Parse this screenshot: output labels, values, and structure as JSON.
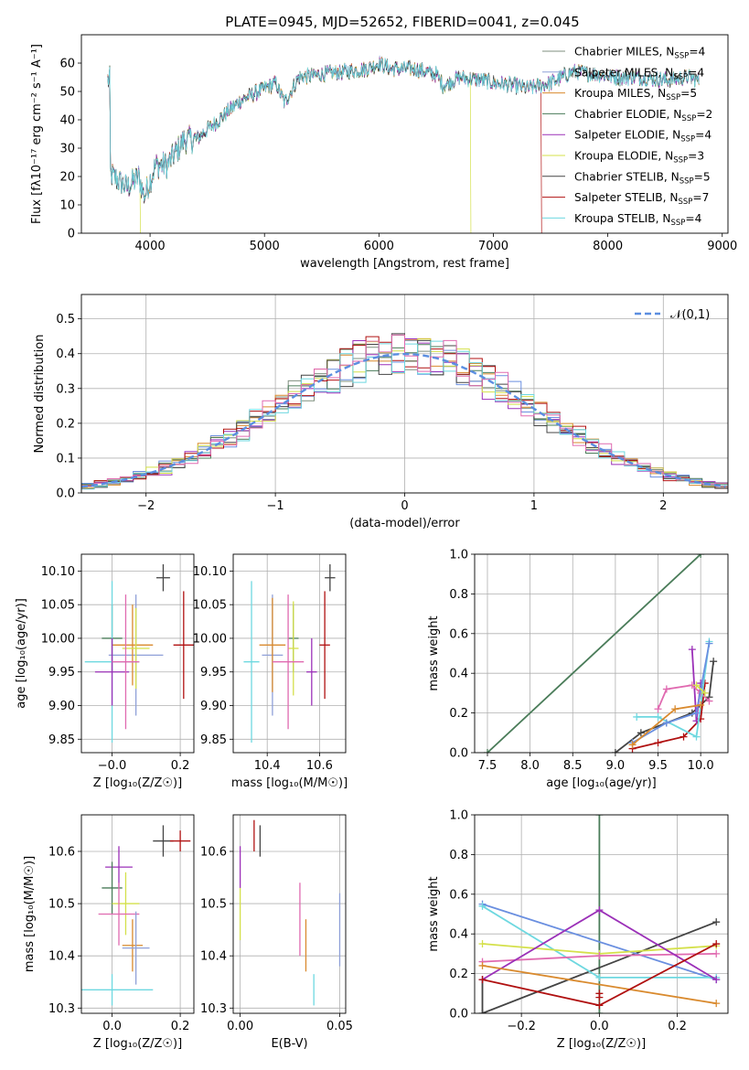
{
  "colors": {
    "Chabrier MILES": "#7f8f7f",
    "Salpeter MILES": "#8fa0d8",
    "Kroupa MILES": "#d98a2e",
    "Chabrier ELODIE": "#4a7c59",
    "Salpeter ELODIE": "#9b30b8",
    "Kroupa ELODIE": "#d4e04a",
    "Chabrier STELIB": "#444444",
    "Salpeter STELIB": "#b01010",
    "Kroupa STELIB": "#6ed8e0",
    "hist_extra_blue": "#6a8fe0",
    "hist_extra_pink": "#e06ab0",
    "gaussian": "#5b8ee0"
  },
  "chart_data": [
    {
      "type": "line",
      "title": "PLATE=0945, MJD=52652, FIBERID=0041, z=0.045",
      "xlabel": "wavelength [Angstrom, rest frame]",
      "ylabel": "Flux [fλ10⁻¹⁷ erg cm⁻² s⁻¹ A⁻¹]",
      "xlim": [
        3400,
        9050
      ],
      "ylim": [
        0,
        70
      ],
      "xticks": [
        4000,
        5000,
        6000,
        7000,
        8000,
        9000
      ],
      "yticks": [
        0,
        10,
        20,
        30,
        40,
        50,
        60
      ],
      "grid": false,
      "legend_position": "top-right",
      "series": [
        {
          "name": "Chabrier MILES, N_SSP=4"
        },
        {
          "name": "Salpeter MILES, N_SSP=4"
        },
        {
          "name": "Kroupa MILES, N_SSP=5"
        },
        {
          "name": "Chabrier ELODIE, N_SSP=2"
        },
        {
          "name": "Salpeter ELODIE, N_SSP=4"
        },
        {
          "name": "Kroupa ELODIE, N_SSP=3"
        },
        {
          "name": "Chabrier STELIB, N_SSP=5"
        },
        {
          "name": "Salpeter STELIB, N_SSP=7"
        },
        {
          "name": "Kroupa STELIB, N_SSP=4"
        }
      ],
      "continuum_points": [
        [
          3650,
          21
        ],
        [
          3800,
          16
        ],
        [
          3900,
          20
        ],
        [
          3950,
          13
        ],
        [
          4050,
          24
        ],
        [
          4150,
          24
        ],
        [
          4300,
          33
        ],
        [
          4400,
          33
        ],
        [
          4600,
          40
        ],
        [
          4800,
          47
        ],
        [
          5000,
          51
        ],
        [
          5100,
          53
        ],
        [
          5175,
          46
        ],
        [
          5300,
          55
        ],
        [
          5500,
          56
        ],
        [
          5700,
          57
        ],
        [
          5900,
          58
        ],
        [
          6000,
          60
        ],
        [
          6100,
          58
        ],
        [
          6300,
          58
        ],
        [
          6500,
          56
        ],
        [
          6563,
          52
        ],
        [
          6700,
          55
        ],
        [
          6900,
          54
        ],
        [
          7000,
          53
        ],
        [
          7200,
          52
        ],
        [
          7300,
          51
        ],
        [
          7500,
          53
        ],
        [
          7700,
          57
        ],
        [
          7900,
          56
        ],
        [
          8100,
          55
        ],
        [
          8300,
          55
        ],
        [
          8500,
          54
        ],
        [
          8700,
          55
        ],
        [
          8800,
          54
        ]
      ],
      "dropouts": [
        {
          "series": "Kroupa ELODIE",
          "x_from": 3920,
          "note": "model ends"
        },
        {
          "series": "Kroupa ELODIE",
          "x_from": 6800,
          "note": "model ends"
        },
        {
          "series": "Salpeter STELIB",
          "x_from": 7420,
          "note": "model ends"
        }
      ]
    },
    {
      "type": "line",
      "xlabel": "(data-model)/error",
      "ylabel": "Normed distribution",
      "xlim": [
        -2.5,
        2.5
      ],
      "ylim": [
        0,
        0.57
      ],
      "xticks": [
        -2,
        -1,
        0,
        1,
        2
      ],
      "yticks": [
        0.0,
        0.1,
        0.2,
        0.3,
        0.4,
        0.5
      ],
      "grid": true,
      "legend_position": "top-right",
      "legend": [
        "𝒩(0,1)"
      ],
      "histogram": "step",
      "bin_width": 0.1
    },
    {
      "type": "scatter",
      "xlabel": "Z [log₁₀(Z/Z☉)]",
      "ylabel": "age  [log₁₀(age/yr)]",
      "xlim": [
        -0.09,
        0.24
      ],
      "ylim": [
        9.83,
        10.125
      ],
      "xticks": [
        -0.0,
        0.2
      ],
      "yticks": [
        9.85,
        9.9,
        9.95,
        10.0,
        10.05,
        10.1
      ],
      "grid": true,
      "points": [
        {
          "series": "Chabrier STELIB",
          "x": 0.15,
          "y": 10.09,
          "xerr": 0.02,
          "yerr": 0.02
        },
        {
          "series": "Salpeter STELIB",
          "x": 0.21,
          "y": 9.99,
          "xerr": 0.03,
          "yerr": 0.08
        },
        {
          "series": "Salpeter MILES",
          "x": 0.07,
          "y": 9.975,
          "xerr": 0.08,
          "yerr": 0.09
        },
        {
          "series": "Kroupa MILES",
          "x": 0.06,
          "y": 9.99,
          "xerr": 0.06,
          "yerr": 0.06
        },
        {
          "series": "Chabrier ELODIE",
          "x": 0.0,
          "y": 10.0,
          "xerr": 0.03,
          "yerr": 0.05
        },
        {
          "series": "Kroupa ELODIE",
          "x": 0.07,
          "y": 9.985,
          "xerr": 0.04,
          "yerr": 0.06
        },
        {
          "series": "Kroupa STELIB",
          "x": -0.0,
          "y": 9.965,
          "xerr": 0.08,
          "yerr": 0.12
        },
        {
          "series": "Salpeter ELODIE",
          "x": 0.0,
          "y": 9.95,
          "xerr": 0.05,
          "yerr": 0.05
        },
        {
          "series": "hist_extra_pink",
          "x": 0.04,
          "y": 9.965,
          "xerr": 0.04,
          "yerr": 0.1
        }
      ]
    },
    {
      "type": "scatter",
      "xlabel": "mass [log₁₀(M/M☉)]",
      "ylabel": "",
      "xlim": [
        10.27,
        10.7
      ],
      "ylim": [
        9.83,
        10.125
      ],
      "xticks": [
        10.4,
        10.6
      ],
      "yticks": [
        9.85,
        9.9,
        9.95,
        10.0,
        10.05,
        10.1
      ],
      "grid": true,
      "points": [
        {
          "series": "Chabrier STELIB",
          "x": 10.64,
          "y": 10.09,
          "xerr": 0.02,
          "yerr": 0.02
        },
        {
          "series": "Salpeter STELIB",
          "x": 10.62,
          "y": 9.99,
          "xerr": 0.02,
          "yerr": 0.08
        },
        {
          "series": "Salpeter MILES",
          "x": 10.42,
          "y": 9.975,
          "xerr": 0.04,
          "yerr": 0.09
        },
        {
          "series": "Kroupa MILES",
          "x": 10.42,
          "y": 9.99,
          "xerr": 0.05,
          "yerr": 0.07
        },
        {
          "series": "Chabrier ELODIE",
          "x": 10.5,
          "y": 10.0,
          "xerr": 0.02,
          "yerr": 0.05
        },
        {
          "series": "Kroupa ELODIE",
          "x": 10.5,
          "y": 9.985,
          "xerr": 0.02,
          "yerr": 0.07
        },
        {
          "series": "Kroupa STELIB",
          "x": 10.34,
          "y": 9.965,
          "xerr": 0.03,
          "yerr": 0.12
        },
        {
          "series": "Salpeter ELODIE",
          "x": 10.57,
          "y": 9.95,
          "xerr": 0.02,
          "yerr": 0.05
        },
        {
          "series": "hist_extra_pink",
          "x": 10.48,
          "y": 9.965,
          "xerr": 0.06,
          "yerr": 0.1
        }
      ]
    },
    {
      "type": "line",
      "xlabel": "age  [log₁₀(age/yr)]",
      "ylabel": "mass weight",
      "xlim": [
        7.35,
        10.32
      ],
      "ylim": [
        0,
        1.0
      ],
      "xticks": [
        7.5,
        8.0,
        8.5,
        9.0,
        9.5,
        10.0
      ],
      "yticks": [
        0.0,
        0.2,
        0.4,
        0.6,
        0.8,
        1.0
      ],
      "grid": true,
      "series": [
        {
          "series": "Chabrier ELODIE",
          "x": [
            7.5,
            10.0
          ],
          "y": [
            0.0,
            1.0
          ]
        },
        {
          "series": "Chabrier STELIB",
          "x": [
            9.0,
            9.3,
            9.6,
            9.9,
            10.1,
            10.15
          ],
          "y": [
            0.0,
            0.1,
            0.15,
            0.2,
            0.28,
            0.46
          ]
        },
        {
          "series": "Salpeter STELIB",
          "x": [
            9.2,
            9.5,
            9.8,
            10.0,
            10.05
          ],
          "y": [
            0.02,
            0.05,
            0.08,
            0.17,
            0.35
          ]
        },
        {
          "series": "Salpeter ELODIE",
          "x": [
            9.9,
            9.95,
            10.0,
            10.05
          ],
          "y": [
            0.52,
            0.16,
            0.35,
            0.3
          ]
        },
        {
          "series": "hist_extra_pink",
          "x": [
            9.5,
            9.6,
            9.9,
            10.0,
            10.1
          ],
          "y": [
            0.22,
            0.32,
            0.34,
            0.3,
            0.26
          ]
        },
        {
          "series": "Kroupa STELIB",
          "x": [
            9.25,
            9.5,
            9.95,
            10.1
          ],
          "y": [
            0.18,
            0.18,
            0.08,
            0.56
          ]
        },
        {
          "series": "hist_extra_blue",
          "x": [
            9.2,
            9.6,
            9.95,
            10.1
          ],
          "y": [
            0.05,
            0.15,
            0.2,
            0.55
          ]
        },
        {
          "series": "Kroupa MILES",
          "x": [
            9.2,
            9.7,
            10.0
          ],
          "y": [
            0.04,
            0.22,
            0.24
          ]
        },
        {
          "series": "Kroupa ELODIE",
          "x": [
            9.95,
            10.05
          ],
          "y": [
            0.34,
            0.3
          ]
        }
      ]
    },
    {
      "type": "scatter",
      "xlabel": "Z [log₁₀(Z/Z☉)]",
      "ylabel": "mass [log₁₀(M/M☉)]",
      "xlim": [
        -0.09,
        0.24
      ],
      "ylim": [
        10.29,
        10.67
      ],
      "xticks": [
        0.0,
        0.2
      ],
      "yticks": [
        10.3,
        10.4,
        10.5,
        10.6
      ],
      "grid": true,
      "points": [
        {
          "series": "Chabrier STELIB",
          "x": 0.15,
          "y": 10.62,
          "xerr": 0.03,
          "yerr": 0.03
        },
        {
          "series": "Salpeter STELIB",
          "x": 0.2,
          "y": 10.62,
          "xerr": 0.03,
          "yerr": 0.02
        },
        {
          "series": "Salpeter ELODIE",
          "x": 0.02,
          "y": 10.57,
          "xerr": 0.04,
          "yerr": 0.04
        },
        {
          "series": "Chabrier ELODIE",
          "x": 0.0,
          "y": 10.53,
          "xerr": 0.03,
          "yerr": 0.05
        },
        {
          "series": "Kroupa ELODIE",
          "x": 0.04,
          "y": 10.5,
          "xerr": 0.04,
          "yerr": 0.06
        },
        {
          "series": "hist_extra_pink",
          "x": 0.02,
          "y": 10.48,
          "xerr": 0.06,
          "yerr": 0.06
        },
        {
          "series": "Kroupa MILES",
          "x": 0.06,
          "y": 10.42,
          "xerr": 0.03,
          "yerr": 0.05
        },
        {
          "series": "Salpeter MILES",
          "x": 0.07,
          "y": 10.415,
          "xerr": 0.04,
          "yerr": 0.07
        },
        {
          "series": "Kroupa STELIB",
          "x": 0.0,
          "y": 10.335,
          "xerr": 0.12,
          "yerr": 0.03
        }
      ]
    },
    {
      "type": "scatter",
      "xlabel": "E(B-V)",
      "ylabel": "",
      "xlim": [
        -0.0035,
        0.053
      ],
      "ylim": [
        10.29,
        10.67
      ],
      "xticks": [
        0.0,
        0.05
      ],
      "yticks": [
        10.3,
        10.4,
        10.5,
        10.6
      ],
      "grid": true,
      "points": [
        {
          "series": "Salpeter STELIB",
          "x": 0.007,
          "y": 10.63,
          "yerr": 0.03
        },
        {
          "series": "Chabrier STELIB",
          "x": 0.01,
          "y": 10.62,
          "yerr": 0.03
        },
        {
          "series": "Salpeter ELODIE",
          "x": 0.0,
          "y": 10.57,
          "yerr": 0.04
        },
        {
          "series": "Kroupa ELODIE",
          "x": 0.0,
          "y": 10.48,
          "yerr": 0.05
        },
        {
          "series": "hist_extra_pink",
          "x": 0.03,
          "y": 10.47,
          "yerr": 0.07
        },
        {
          "series": "Kroupa MILES",
          "x": 0.033,
          "y": 10.42,
          "yerr": 0.05
        },
        {
          "series": "Kroupa STELIB",
          "x": 0.037,
          "y": 10.335,
          "yerr": 0.03
        },
        {
          "series": "Salpeter MILES",
          "x": 0.05,
          "y": 10.45,
          "yerr": 0.07
        }
      ]
    },
    {
      "type": "line",
      "xlabel": "Z [log₁₀(Z/Z☉)]",
      "ylabel": "mass weight",
      "xlim": [
        -0.32,
        0.33
      ],
      "ylim": [
        0,
        1.0
      ],
      "xticks": [
        -0.2,
        0.0,
        0.2
      ],
      "yticks": [
        0.0,
        0.2,
        0.4,
        0.6,
        0.8,
        1.0
      ],
      "grid": true,
      "series": [
        {
          "series": "Chabrier ELODIE",
          "x": [
            0.0,
            0.0
          ],
          "y": [
            0.0,
            1.0
          ]
        },
        {
          "series": "Chabrier STELIB",
          "x": [
            -0.3,
            -0.3,
            0.3
          ],
          "y": [
            0.17,
            0.0,
            0.46
          ]
        },
        {
          "series": "hist_extra_blue",
          "x": [
            -0.3,
            0.3
          ],
          "y": [
            0.55,
            0.17
          ]
        },
        {
          "series": "Kroupa STELIB",
          "x": [
            -0.3,
            0.0,
            0.3
          ],
          "y": [
            0.54,
            0.18,
            0.18
          ]
        },
        {
          "series": "Kroupa ELODIE",
          "x": [
            -0.3,
            0.0,
            0.3
          ],
          "y": [
            0.35,
            0.3,
            0.34
          ]
        },
        {
          "series": "hist_extra_pink",
          "x": [
            -0.3,
            0.0,
            0.3
          ],
          "y": [
            0.26,
            0.29,
            0.3
          ]
        },
        {
          "series": "Salpeter ELODIE",
          "x": [
            -0.3,
            0.0,
            0.3
          ],
          "y": [
            0.17,
            0.52,
            0.17
          ]
        },
        {
          "series": "Kroupa MILES",
          "x": [
            -0.3,
            0.3
          ],
          "y": [
            0.24,
            0.05
          ]
        },
        {
          "series": "Salpeter STELIB",
          "x": [
            -0.3,
            0.0,
            0.3
          ],
          "y": [
            0.17,
            0.04,
            0.35
          ]
        },
        {
          "series": "Salpeter STELIB",
          "x": [
            0.0,
            0.0
          ],
          "y": [
            0.08,
            0.1
          ]
        }
      ]
    }
  ]
}
